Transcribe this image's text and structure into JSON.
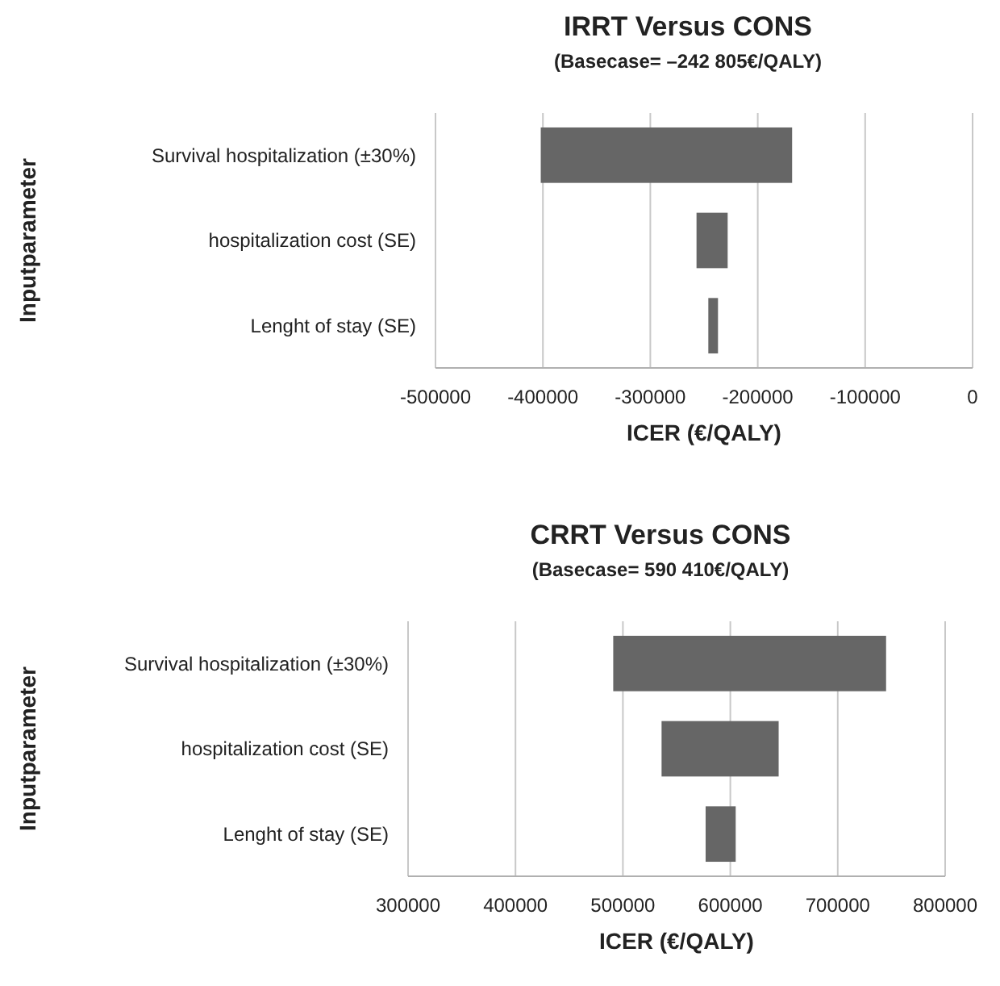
{
  "chart_data": [
    {
      "type": "bar",
      "orientation": "horizontal",
      "title": "IRRT Versus CONS",
      "subtitle": "(Basecase= –242 805€/QALY)",
      "xlabel": "ICER (€/QALY)",
      "ylabel": "Inputparameter",
      "categories": [
        "Survival hospitalization (±30%)",
        "hospitalization cost (SE)",
        "Lenght of stay (SE)"
      ],
      "values": [
        234000,
        29000,
        9000
      ],
      "base": [
        -402000,
        -257000,
        -246000
      ],
      "color": "#666666",
      "xlim": [
        -500000,
        0
      ],
      "xticks": [
        -500000,
        -400000,
        -300000,
        -200000,
        -100000,
        0
      ],
      "grid": "x"
    },
    {
      "type": "bar",
      "orientation": "horizontal",
      "title": "CRRT Versus CONS",
      "subtitle": "(Basecase= 590 410€/QALY)",
      "xlabel": "ICER (€/QALY)",
      "ylabel": "Inputparameter",
      "categories": [
        "Survival hospitalization (±30%)",
        "hospitalization cost (SE)",
        "Lenght of stay (SE)"
      ],
      "values": [
        254000,
        109000,
        28000
      ],
      "base": [
        491000,
        536000,
        577000
      ],
      "color": "#666666",
      "xlim": [
        300000,
        800000
      ],
      "xticks": [
        300000,
        400000,
        500000,
        600000,
        700000,
        800000
      ],
      "grid": "x"
    }
  ]
}
